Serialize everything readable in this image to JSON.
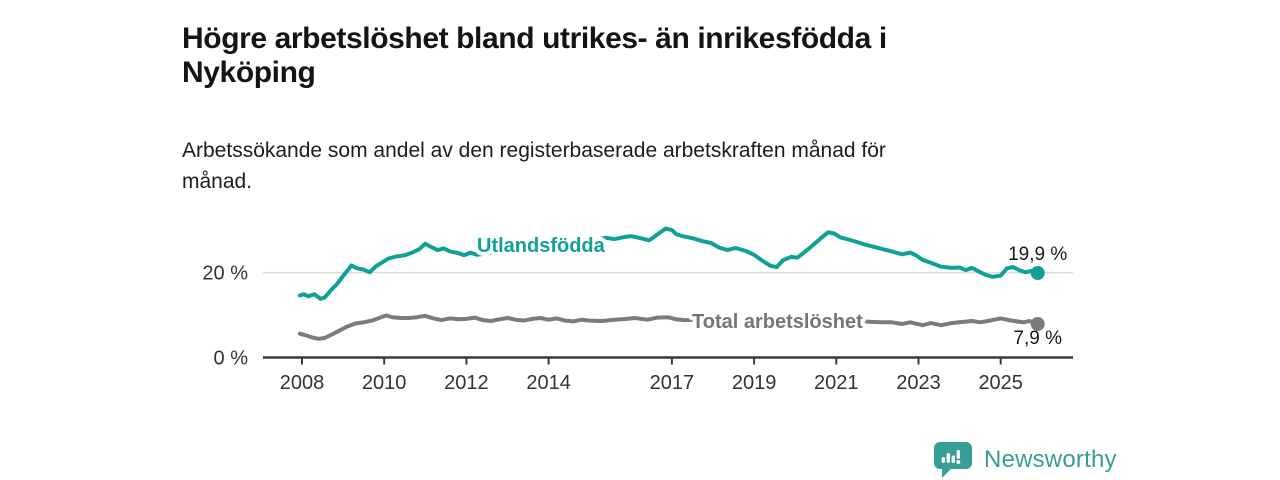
{
  "title": "Högre arbetslöshet bland utrikes- än inrikesfödda i\nNyköping",
  "subtitle": "Arbetssökande som andel av den registerbaserade arbetskraften månad för\nmånad.",
  "footer": {
    "brand": "Newsworthy",
    "logo_icon": "newsworthy-speech-bubble-bar-chart-icon"
  },
  "colors": {
    "teal": "#0fa294",
    "gray": "#7b7b7b",
    "gray_label": "#757575",
    "axis": "#3a3a3a",
    "axis_text": "#333333",
    "grid": "#dcdcdc",
    "value_text": "#1a1a1a",
    "brand_teal": "#379e96"
  },
  "chart_data": {
    "type": "line",
    "title": "Högre arbetslöshet bland utrikes- än inrikesfödda i Nyköping",
    "subtitle": "Arbetssökande som andel av den registerbaserade arbetskraften månad för månad.",
    "xlabel": "",
    "ylabel": "",
    "grid": "horizontal gridline at 20 % only",
    "legend_position": "inline labels on lines",
    "xlim": [
      2007.05,
      2026.8
    ],
    "ylim": [
      0,
      33
    ],
    "y_ticks": [
      {
        "value": 0,
        "label": "0 %",
        "gridline": false
      },
      {
        "value": 20,
        "label": "20 %",
        "gridline": true
      }
    ],
    "x_ticks": [
      {
        "year": 2008,
        "label": "2008"
      },
      {
        "year": 2010,
        "label": "2010"
      },
      {
        "year": 2012,
        "label": "2012"
      },
      {
        "year": 2014,
        "label": "2014"
      },
      {
        "year": 2017,
        "label": "2017"
      },
      {
        "year": 2019,
        "label": "2019"
      },
      {
        "year": 2021,
        "label": "2021"
      },
      {
        "year": 2023,
        "label": "2023"
      },
      {
        "year": 2025,
        "label": "2025"
      }
    ],
    "series": [
      {
        "name": "Utlandsfödda",
        "color": "#0fa294",
        "label_color": "#0fa294",
        "end_value": 19.9,
        "end_label": "19,9 %",
        "points": [
          [
            2007.95,
            14.6
          ],
          [
            2008.05,
            14.9
          ],
          [
            2008.15,
            14.4
          ],
          [
            2008.3,
            14.9
          ],
          [
            2008.45,
            13.8
          ],
          [
            2008.55,
            14.1
          ],
          [
            2008.7,
            15.8
          ],
          [
            2008.85,
            17.3
          ],
          [
            2009.0,
            19.2
          ],
          [
            2009.1,
            20.4
          ],
          [
            2009.2,
            21.7
          ],
          [
            2009.35,
            21.0
          ],
          [
            2009.5,
            20.7
          ],
          [
            2009.65,
            20.1
          ],
          [
            2009.8,
            21.5
          ],
          [
            2009.95,
            22.4
          ],
          [
            2010.1,
            23.3
          ],
          [
            2010.3,
            23.8
          ],
          [
            2010.5,
            24.1
          ],
          [
            2010.7,
            24.8
          ],
          [
            2010.85,
            25.5
          ],
          [
            2011.0,
            26.8
          ],
          [
            2011.15,
            26.0
          ],
          [
            2011.3,
            25.3
          ],
          [
            2011.45,
            25.7
          ],
          [
            2011.6,
            25.0
          ],
          [
            2011.8,
            24.6
          ],
          [
            2011.95,
            24.1
          ],
          [
            2012.1,
            24.7
          ],
          [
            2012.25,
            24.2
          ],
          [
            2012.5,
            24.5
          ],
          [
            2012.8,
            24.9
          ],
          [
            2013.1,
            25.2
          ],
          [
            2013.4,
            25.5
          ],
          [
            2013.7,
            25.8
          ],
          [
            2014.0,
            26.2
          ],
          [
            2014.3,
            26.5
          ],
          [
            2014.6,
            26.9
          ],
          [
            2014.9,
            27.2
          ],
          [
            2015.2,
            27.8
          ],
          [
            2015.4,
            28.2
          ],
          [
            2015.6,
            27.9
          ],
          [
            2015.8,
            28.3
          ],
          [
            2016.0,
            28.6
          ],
          [
            2016.2,
            28.2
          ],
          [
            2016.45,
            27.6
          ],
          [
            2016.65,
            29.0
          ],
          [
            2016.85,
            30.4
          ],
          [
            2017.0,
            30.0
          ],
          [
            2017.1,
            29.1
          ],
          [
            2017.25,
            28.6
          ],
          [
            2017.5,
            28.1
          ],
          [
            2017.75,
            27.4
          ],
          [
            2017.95,
            27.0
          ],
          [
            2018.15,
            25.9
          ],
          [
            2018.35,
            25.3
          ],
          [
            2018.55,
            25.8
          ],
          [
            2018.8,
            25.1
          ],
          [
            2019.0,
            24.2
          ],
          [
            2019.2,
            22.8
          ],
          [
            2019.4,
            21.6
          ],
          [
            2019.55,
            21.3
          ],
          [
            2019.7,
            22.9
          ],
          [
            2019.9,
            23.7
          ],
          [
            2020.05,
            23.5
          ],
          [
            2020.2,
            24.6
          ],
          [
            2020.4,
            26.2
          ],
          [
            2020.6,
            27.9
          ],
          [
            2020.8,
            29.5
          ],
          [
            2020.95,
            29.2
          ],
          [
            2021.1,
            28.3
          ],
          [
            2021.3,
            27.8
          ],
          [
            2021.5,
            27.2
          ],
          [
            2021.7,
            26.6
          ],
          [
            2021.9,
            26.1
          ],
          [
            2022.1,
            25.6
          ],
          [
            2022.35,
            25.0
          ],
          [
            2022.6,
            24.3
          ],
          [
            2022.8,
            24.7
          ],
          [
            2022.95,
            24.0
          ],
          [
            2023.1,
            23.0
          ],
          [
            2023.3,
            22.3
          ],
          [
            2023.55,
            21.4
          ],
          [
            2023.8,
            21.1
          ],
          [
            2024.0,
            21.2
          ],
          [
            2024.15,
            20.6
          ],
          [
            2024.3,
            21.1
          ],
          [
            2024.5,
            20.1
          ],
          [
            2024.65,
            19.4
          ],
          [
            2024.8,
            19.0
          ],
          [
            2025.0,
            19.3
          ],
          [
            2025.15,
            21.0
          ],
          [
            2025.3,
            21.3
          ],
          [
            2025.45,
            20.6
          ],
          [
            2025.6,
            20.1
          ],
          [
            2025.75,
            20.4
          ],
          [
            2025.9,
            19.9
          ]
        ]
      },
      {
        "name": "Total arbetslöshet",
        "color": "#7b7b7b",
        "label_color": "#757575",
        "end_value": 7.9,
        "end_label": "7,9 %",
        "points": [
          [
            2007.95,
            5.6
          ],
          [
            2008.1,
            5.2
          ],
          [
            2008.25,
            4.7
          ],
          [
            2008.4,
            4.4
          ],
          [
            2008.55,
            4.6
          ],
          [
            2008.7,
            5.3
          ],
          [
            2008.9,
            6.3
          ],
          [
            2009.1,
            7.3
          ],
          [
            2009.3,
            8.0
          ],
          [
            2009.5,
            8.3
          ],
          [
            2009.7,
            8.7
          ],
          [
            2009.9,
            9.4
          ],
          [
            2010.05,
            9.9
          ],
          [
            2010.2,
            9.5
          ],
          [
            2010.4,
            9.3
          ],
          [
            2010.6,
            9.3
          ],
          [
            2010.8,
            9.5
          ],
          [
            2011.0,
            9.8
          ],
          [
            2011.2,
            9.2
          ],
          [
            2011.4,
            8.8
          ],
          [
            2011.6,
            9.2
          ],
          [
            2011.8,
            9.0
          ],
          [
            2012.0,
            9.1
          ],
          [
            2012.2,
            9.4
          ],
          [
            2012.4,
            8.8
          ],
          [
            2012.6,
            8.6
          ],
          [
            2012.8,
            9.0
          ],
          [
            2013.0,
            9.3
          ],
          [
            2013.2,
            8.9
          ],
          [
            2013.4,
            8.7
          ],
          [
            2013.6,
            9.1
          ],
          [
            2013.8,
            9.3
          ],
          [
            2014.0,
            8.9
          ],
          [
            2014.2,
            9.2
          ],
          [
            2014.4,
            8.7
          ],
          [
            2014.6,
            8.5
          ],
          [
            2014.8,
            8.9
          ],
          [
            2015.0,
            8.7
          ],
          [
            2015.3,
            8.6
          ],
          [
            2015.6,
            8.9
          ],
          [
            2015.9,
            9.1
          ],
          [
            2016.1,
            9.3
          ],
          [
            2016.4,
            8.9
          ],
          [
            2016.65,
            9.4
          ],
          [
            2016.9,
            9.5
          ],
          [
            2017.1,
            9.0
          ],
          [
            2017.3,
            8.8
          ],
          [
            2017.6,
            8.9
          ],
          [
            2017.9,
            8.7
          ],
          [
            2018.2,
            8.5
          ],
          [
            2018.5,
            8.7
          ],
          [
            2018.8,
            8.4
          ],
          [
            2019.1,
            8.2
          ],
          [
            2019.4,
            8.0
          ],
          [
            2019.7,
            8.3
          ],
          [
            2020.0,
            8.5
          ],
          [
            2020.3,
            9.0
          ],
          [
            2020.6,
            9.4
          ],
          [
            2020.9,
            9.2
          ],
          [
            2021.2,
            8.9
          ],
          [
            2021.5,
            8.6
          ],
          [
            2021.8,
            8.4
          ],
          [
            2022.1,
            8.3
          ],
          [
            2022.35,
            8.3
          ],
          [
            2022.6,
            7.9
          ],
          [
            2022.8,
            8.3
          ],
          [
            2023.1,
            7.6
          ],
          [
            2023.3,
            8.1
          ],
          [
            2023.55,
            7.6
          ],
          [
            2023.8,
            8.1
          ],
          [
            2024.0,
            8.3
          ],
          [
            2024.3,
            8.6
          ],
          [
            2024.5,
            8.3
          ],
          [
            2024.8,
            8.8
          ],
          [
            2025.0,
            9.2
          ],
          [
            2025.2,
            8.8
          ],
          [
            2025.4,
            8.5
          ],
          [
            2025.55,
            8.3
          ],
          [
            2025.7,
            8.6
          ],
          [
            2025.9,
            7.9
          ]
        ]
      }
    ]
  }
}
